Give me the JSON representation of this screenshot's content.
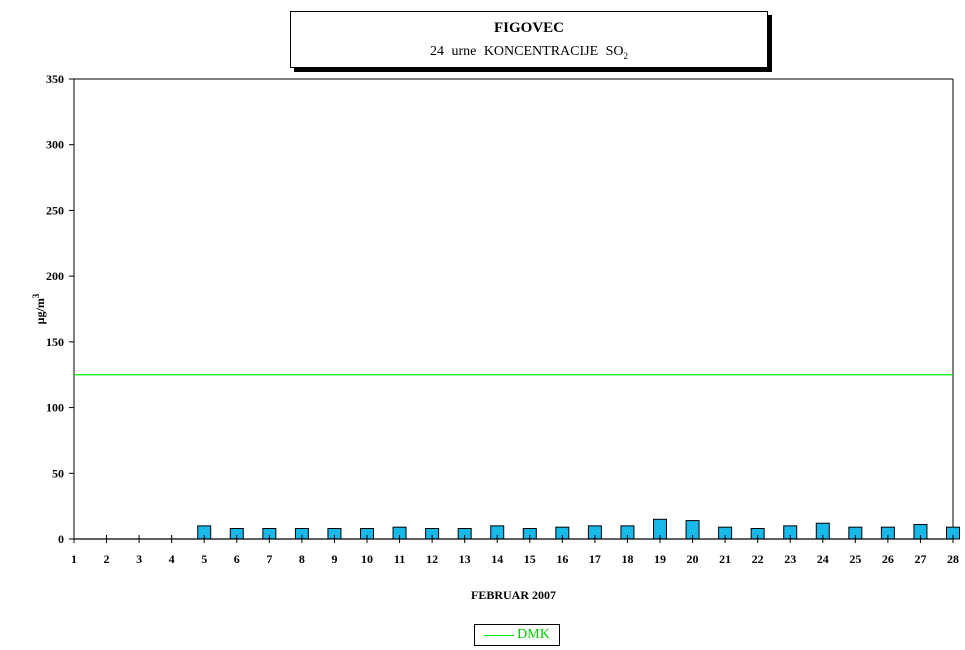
{
  "title": {
    "main": "FIGOVEC",
    "sub_prefix": "24 urne KONCENTRACIJE SO",
    "sub_index": "2"
  },
  "chart_data": {
    "type": "bar",
    "xlabel": "FEBRUAR 2007",
    "ylabel": {
      "base": "μg/m",
      "sup": "3"
    },
    "ylim": [
      0,
      350
    ],
    "yticks": [
      0,
      50,
      100,
      150,
      200,
      250,
      300,
      350
    ],
    "categories": [
      "1",
      "2",
      "3",
      "4",
      "5",
      "6",
      "7",
      "8",
      "9",
      "10",
      "11",
      "12",
      "13",
      "14",
      "15",
      "16",
      "17",
      "18",
      "19",
      "20",
      "21",
      "22",
      "23",
      "24",
      "25",
      "26",
      "27",
      "28"
    ],
    "series": [
      {
        "values": [
          null,
          null,
          null,
          null,
          10,
          8,
          8,
          8,
          8,
          8,
          9,
          8,
          8,
          10,
          8,
          9,
          10,
          10,
          15,
          14,
          9,
          8,
          10,
          12,
          9,
          9,
          11,
          9
        ],
        "color": "#18b8e8"
      }
    ],
    "reference_lines": [
      {
        "name": "DMK",
        "value": 125,
        "color": "#00ee00"
      }
    ],
    "legend": "bottom-center",
    "grid": false
  }
}
